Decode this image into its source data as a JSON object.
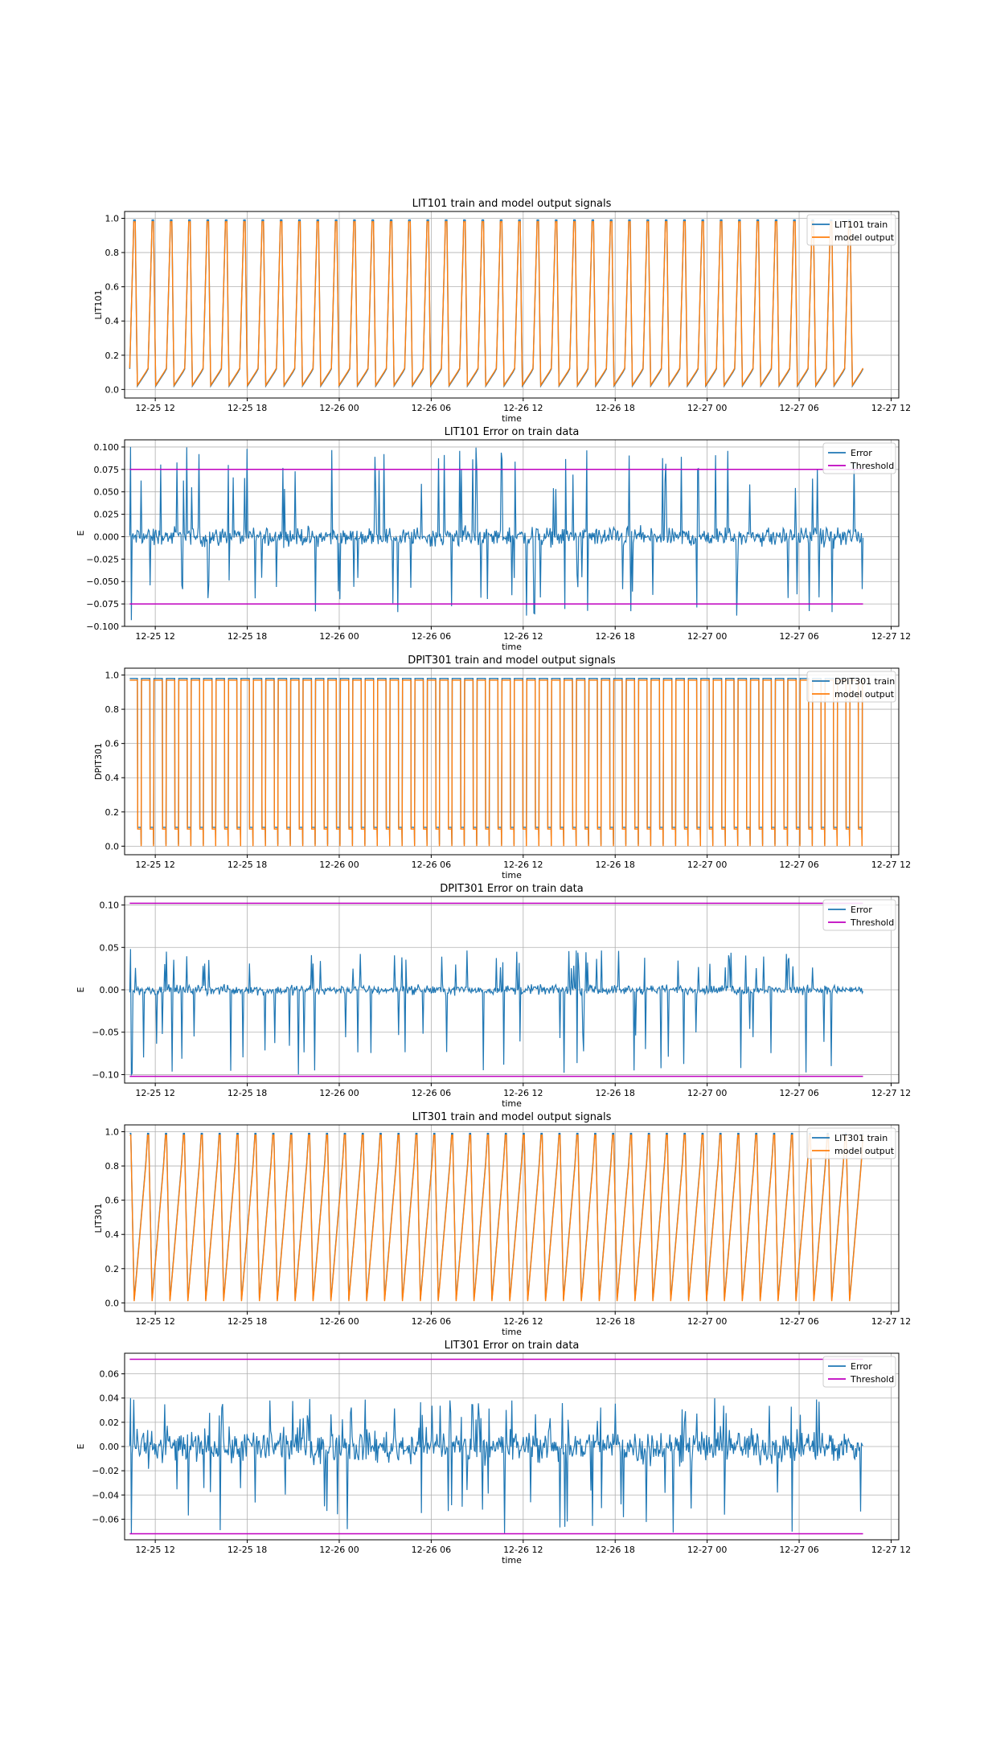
{
  "colors": {
    "train": "#1f77b4",
    "model": "#ff7f0e",
    "error": "#1f77b4",
    "threshold": "#bf00bf",
    "grid": "#b0b0b0"
  },
  "x_ticks": [
    "12-25 12",
    "12-25 18",
    "12-26 00",
    "12-26 06",
    "12-26 12",
    "12-26 18",
    "12-27 00",
    "12-27 06",
    "12-27 12"
  ],
  "x_range": [
    "12-25 10:00",
    "12-27 12:30"
  ],
  "chart_data": [
    {
      "type": "line",
      "kind": "signal",
      "title": "LIT101 train and model output signals",
      "xlabel": "time",
      "ylabel": "LIT101",
      "ylim": [
        -0.05,
        1.04
      ],
      "yticks": [
        0.0,
        0.2,
        0.4,
        0.6,
        0.8,
        1.0
      ],
      "ytick_labels": [
        "0.0",
        "0.2",
        "0.4",
        "0.6",
        "0.8",
        "1.0"
      ],
      "legend_position": "upper right",
      "grid": true,
      "x_start": "12-25 10:20",
      "x_end": "12-27 10:10",
      "cycle_count": 40,
      "min": 0.02,
      "max": 0.99,
      "series": [
        {
          "name": "LIT101 train",
          "color": "#1f77b4"
        },
        {
          "name": "model output",
          "color": "#ff7f0e"
        }
      ]
    },
    {
      "type": "line",
      "kind": "error",
      "title": "LIT101 Error on train data",
      "xlabel": "time",
      "ylabel": "E",
      "ylim": [
        -0.1,
        0.108
      ],
      "yticks": [
        -0.1,
        -0.075,
        -0.05,
        -0.025,
        0.0,
        0.025,
        0.05,
        0.075,
        0.1
      ],
      "ytick_labels": [
        "−0.100",
        "−0.075",
        "−0.050",
        "−0.025",
        "0.000",
        "0.025",
        "0.050",
        "0.075",
        "0.100"
      ],
      "legend_position": "upper right",
      "grid": true,
      "x_start": "12-25 10:20",
      "x_end": "12-27 10:10",
      "threshold": 0.075,
      "noise_amplitude": 0.015,
      "spike_max": 0.1,
      "spike_min": -0.093,
      "series": [
        {
          "name": "Error",
          "color": "#1f77b4"
        },
        {
          "name": "Threshold",
          "color": "#bf00bf"
        }
      ]
    },
    {
      "type": "line",
      "kind": "square",
      "title": "DPIT301 train and model output signals",
      "xlabel": "time",
      "ylabel": "DPIT301",
      "ylim": [
        -0.05,
        1.04
      ],
      "yticks": [
        0.0,
        0.2,
        0.4,
        0.6,
        0.8,
        1.0
      ],
      "ytick_labels": [
        "0.0",
        "0.2",
        "0.4",
        "0.6",
        "0.8",
        "1.0"
      ],
      "legend_position": "upper right",
      "grid": true,
      "x_start": "12-25 10:20",
      "x_end": "12-27 10:10",
      "cycle_count": 59,
      "high": 0.97,
      "low": 0.1,
      "series": [
        {
          "name": "DPIT301 train",
          "color": "#1f77b4"
        },
        {
          "name": "model output",
          "color": "#ff7f0e"
        }
      ]
    },
    {
      "type": "line",
      "kind": "error",
      "title": "DPIT301 Error on train data",
      "xlabel": "time",
      "ylabel": "E",
      "ylim": [
        -0.11,
        0.11
      ],
      "yticks": [
        -0.1,
        -0.05,
        0.0,
        0.05,
        0.1
      ],
      "ytick_labels": [
        "−0.10",
        "−0.05",
        "0.00",
        "0.05",
        "0.10"
      ],
      "legend_position": "upper right",
      "grid": true,
      "x_start": "12-25 10:20",
      "x_end": "12-27 10:10",
      "threshold": 0.102,
      "noise_amplitude": 0.008,
      "spike_max": 0.048,
      "spike_min": -0.1,
      "series": [
        {
          "name": "Error",
          "color": "#1f77b4"
        },
        {
          "name": "Threshold",
          "color": "#bf00bf"
        }
      ]
    },
    {
      "type": "line",
      "kind": "sawtooth",
      "title": "LIT301 train and model output signals",
      "xlabel": "time",
      "ylabel": "LIT301",
      "ylim": [
        -0.05,
        1.04
      ],
      "yticks": [
        0.0,
        0.2,
        0.4,
        0.6,
        0.8,
        1.0
      ],
      "ytick_labels": [
        "0.0",
        "0.2",
        "0.4",
        "0.6",
        "0.8",
        "1.0"
      ],
      "legend_position": "upper right",
      "grid": true,
      "x_start": "12-25 10:20",
      "x_end": "12-27 10:10",
      "cycle_count": 41,
      "min": 0.02,
      "max": 0.99,
      "series": [
        {
          "name": "LIT301 train",
          "color": "#1f77b4"
        },
        {
          "name": "model output",
          "color": "#ff7f0e"
        }
      ]
    },
    {
      "type": "line",
      "kind": "error",
      "title": "LIT301 Error on train data",
      "xlabel": "time",
      "ylabel": "E",
      "ylim": [
        -0.077,
        0.077
      ],
      "yticks": [
        -0.06,
        -0.04,
        -0.02,
        0.0,
        0.02,
        0.04,
        0.06
      ],
      "ytick_labels": [
        "−0.06",
        "−0.04",
        "−0.02",
        "0.00",
        "0.02",
        "0.04",
        "0.06"
      ],
      "legend_position": "upper right",
      "grid": true,
      "x_start": "12-25 10:20",
      "x_end": "12-27 10:10",
      "threshold": 0.072,
      "noise_amplitude": 0.02,
      "spike_max": 0.04,
      "spike_min": -0.072,
      "series": [
        {
          "name": "Error",
          "color": "#1f77b4"
        },
        {
          "name": "Threshold",
          "color": "#bf00bf"
        }
      ]
    }
  ]
}
